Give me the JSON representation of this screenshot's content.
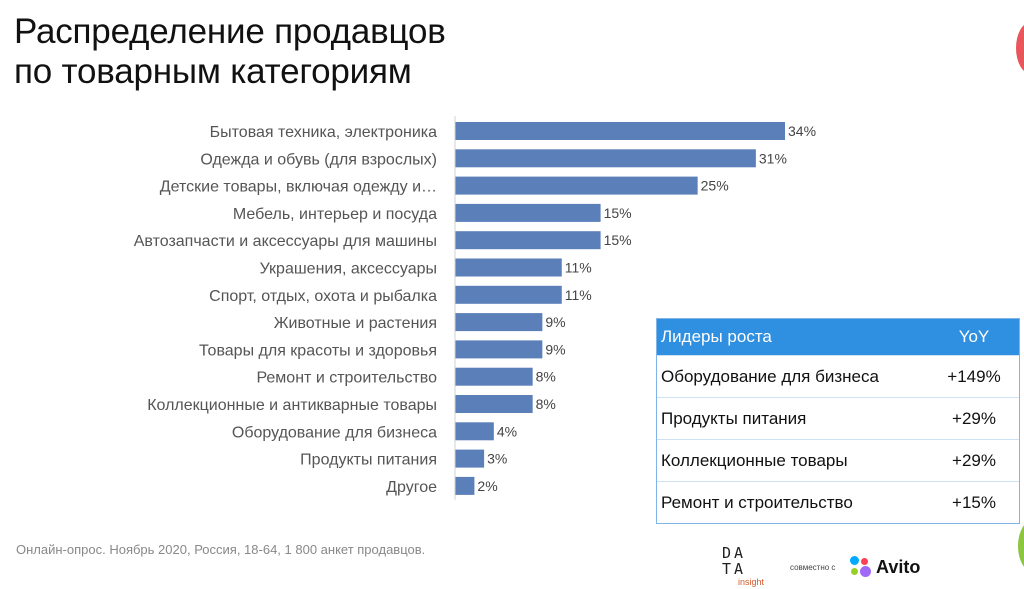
{
  "title_lines": [
    "Распределение продавцов",
    "по товарным категориям"
  ],
  "chart_data": {
    "type": "bar",
    "orientation": "horizontal",
    "title": "Распределение продавцов по товарным категориям",
    "categories": [
      "Бытовая техника, электроника",
      "Одежда и обувь (для взрослых)",
      "Детские товары, включая одежду и…",
      "Мебель, интерьер и посуда",
      "Автозапчасти и аксессуары для машины",
      "Украшения, аксессуары",
      "Спорт, отдых, охота и рыбалка",
      "Животные и растения",
      "Товары для красоты и здоровья",
      "Ремонт и строительство",
      "Коллекционные и антикварные товары",
      "Оборудование для бизнеса",
      "Продукты питания",
      "Другое"
    ],
    "values": [
      34,
      31,
      25,
      15,
      15,
      11,
      11,
      9,
      9,
      8,
      8,
      4,
      3,
      2
    ],
    "value_labels": [
      "34%",
      "31%",
      "25%",
      "15%",
      "15%",
      "11%",
      "11%",
      "9%",
      "9%",
      "8%",
      "8%",
      "4%",
      "3%",
      "2%"
    ],
    "unit": "%",
    "xlim": [
      0,
      34
    ],
    "grid": false,
    "bar_color": "#5b7fb9"
  },
  "leaders_table": {
    "header": [
      "Лидеры роста",
      "YoY"
    ],
    "rows": [
      [
        "Оборудование для бизнеса",
        "+149%"
      ],
      [
        "Продукты питания",
        "+29%"
      ],
      [
        "Коллекционные товары",
        "+29%"
      ],
      [
        "Ремонт и строительство",
        "+15%"
      ]
    ],
    "header_color": "#2f8fe0"
  },
  "source": "Онлайн-опрос. Ноябрь 2020, Россия, 18-64, 1 800 анкет продавцов.",
  "logos": {
    "data_insight": [
      "DA",
      "TA",
      "insight"
    ],
    "together": "совместно с",
    "avito": "Avito"
  }
}
